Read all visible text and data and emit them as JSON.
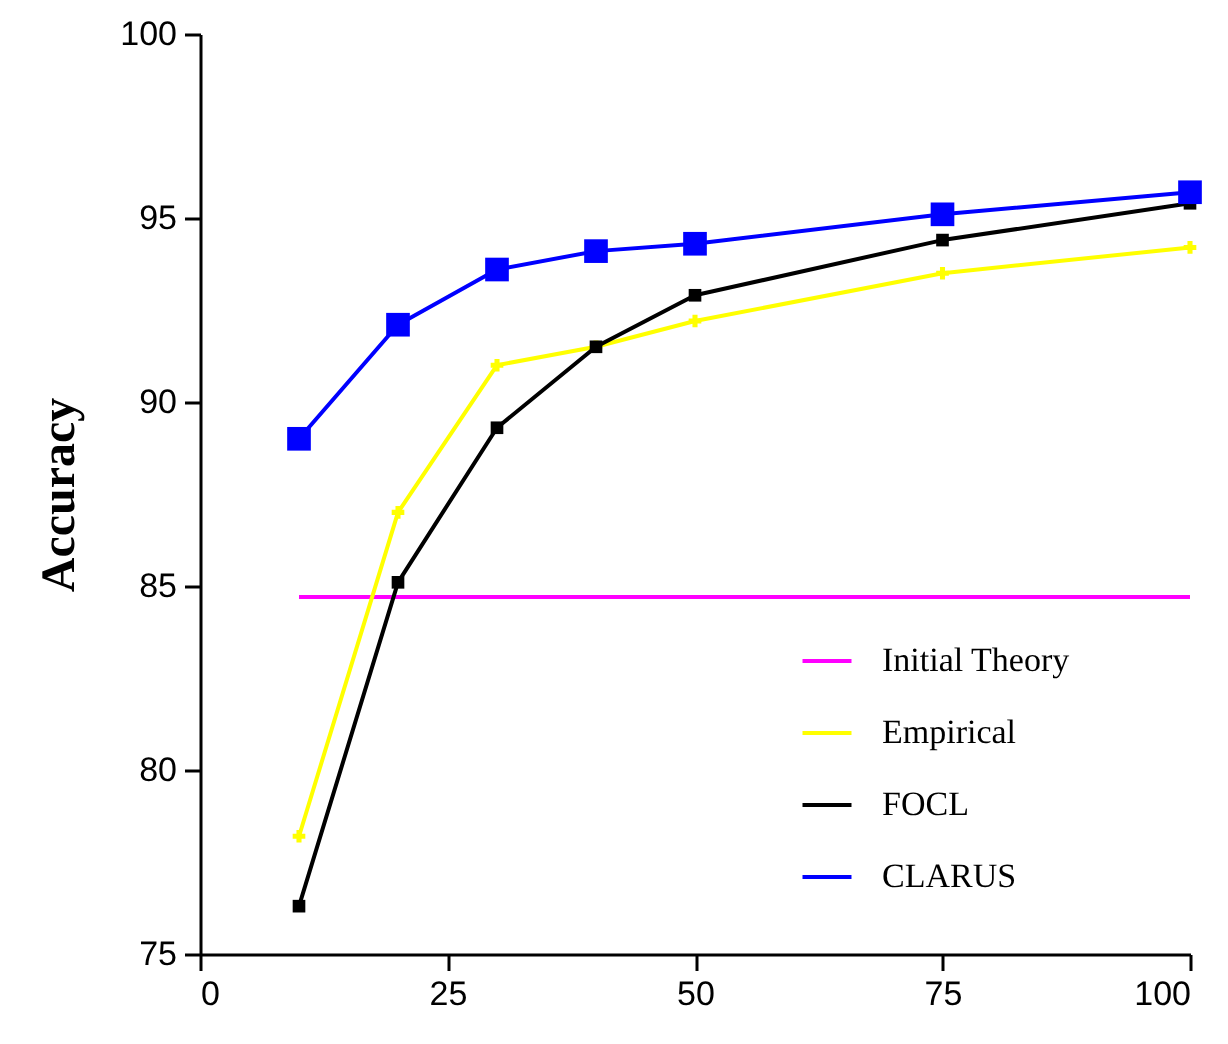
{
  "chart_data": {
    "type": "line",
    "ylabel": "Accuracy",
    "xlim": [
      0,
      100
    ],
    "xticks": [
      0,
      25,
      50,
      75,
      100
    ],
    "ylim": [
      75,
      100
    ],
    "yticks": [
      75,
      80,
      85,
      90,
      95,
      100
    ],
    "grid": false,
    "legend": "bottom right",
    "x": [
      10,
      20,
      30,
      40,
      50,
      75,
      100
    ],
    "series": [
      {
        "name": "Initial Theory",
        "color": "#ff00ff",
        "x": [
          10,
          100
        ],
        "values": [
          84.7,
          84.7
        ],
        "marker": "none"
      },
      {
        "name": "Empirical",
        "color": "#ffff00",
        "values": [
          78.2,
          87.0,
          91.0,
          91.5,
          92.2,
          93.5,
          94.2
        ],
        "marker": "cross"
      },
      {
        "name": "FOCL",
        "color": "#000000",
        "values": [
          76.3,
          85.1,
          89.3,
          91.5,
          92.9,
          94.4,
          95.4
        ],
        "marker": "square"
      },
      {
        "name": "CLARUS",
        "color": "#0000ff",
        "values": [
          89.0,
          92.1,
          93.6,
          94.1,
          94.3,
          95.1,
          95.7
        ],
        "marker": "square"
      }
    ]
  }
}
